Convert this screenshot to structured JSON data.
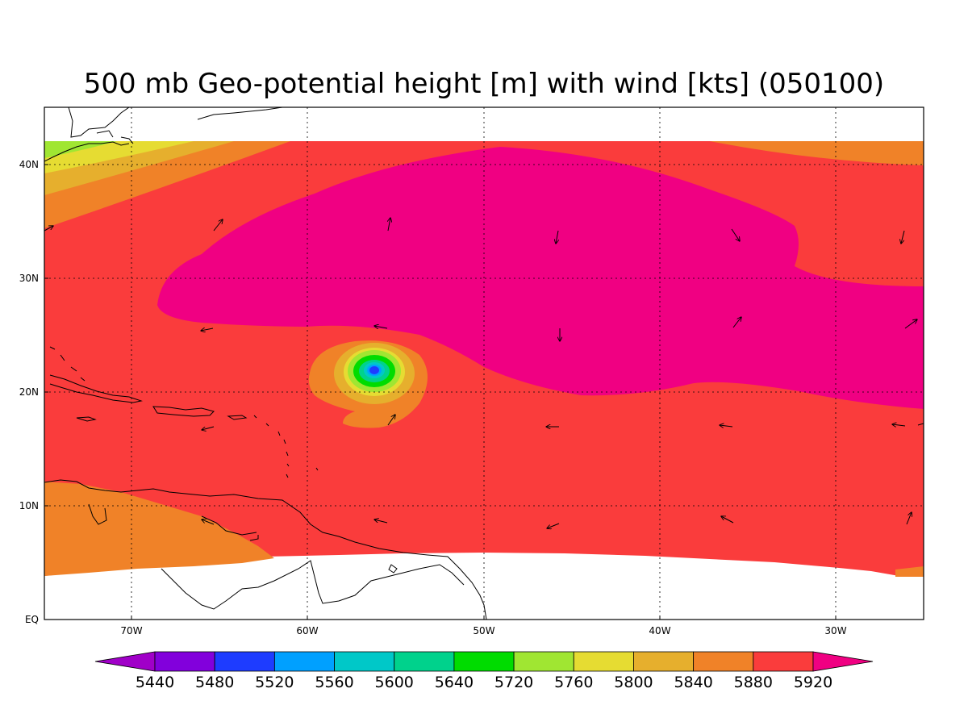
{
  "title": "500 mb Geo-potential height [m] with wind [kts] (050100)",
  "map": {
    "lon_range": [
      -75,
      -25
    ],
    "lat_range": [
      0,
      45
    ],
    "lat_ticks": [
      "40N",
      "30N",
      "20N",
      "10N",
      "EQ"
    ],
    "lon_ticks": [
      "70W",
      "60W",
      "50W",
      "40W",
      "30W"
    ]
  },
  "colorbar": {
    "labels": [
      "5440",
      "5480",
      "5520",
      "5560",
      "5600",
      "5640",
      "5720",
      "5760",
      "5800",
      "5840",
      "5880",
      "5920"
    ],
    "colors": [
      "#a000c8",
      "#8200dc",
      "#1e3cff",
      "#00a0ff",
      "#00c8c8",
      "#00d28c",
      "#00dc00",
      "#a0e632",
      "#e6dc32",
      "#e6af2d",
      "#f08228",
      "#fa3c3c",
      "#f00082"
    ]
  },
  "field_colors": {
    "high": "#f00082",
    "main": "#fa3c3c",
    "mid": "#f08228",
    "lower": "#e6af2d",
    "low": "#e6dc32",
    "lowest": "#a0e632",
    "green": "#00dc00",
    "teal": "#00d28c",
    "blue": "#1e3cff"
  },
  "cyclone_center": {
    "lon": -56.2,
    "lat": 21.9
  }
}
